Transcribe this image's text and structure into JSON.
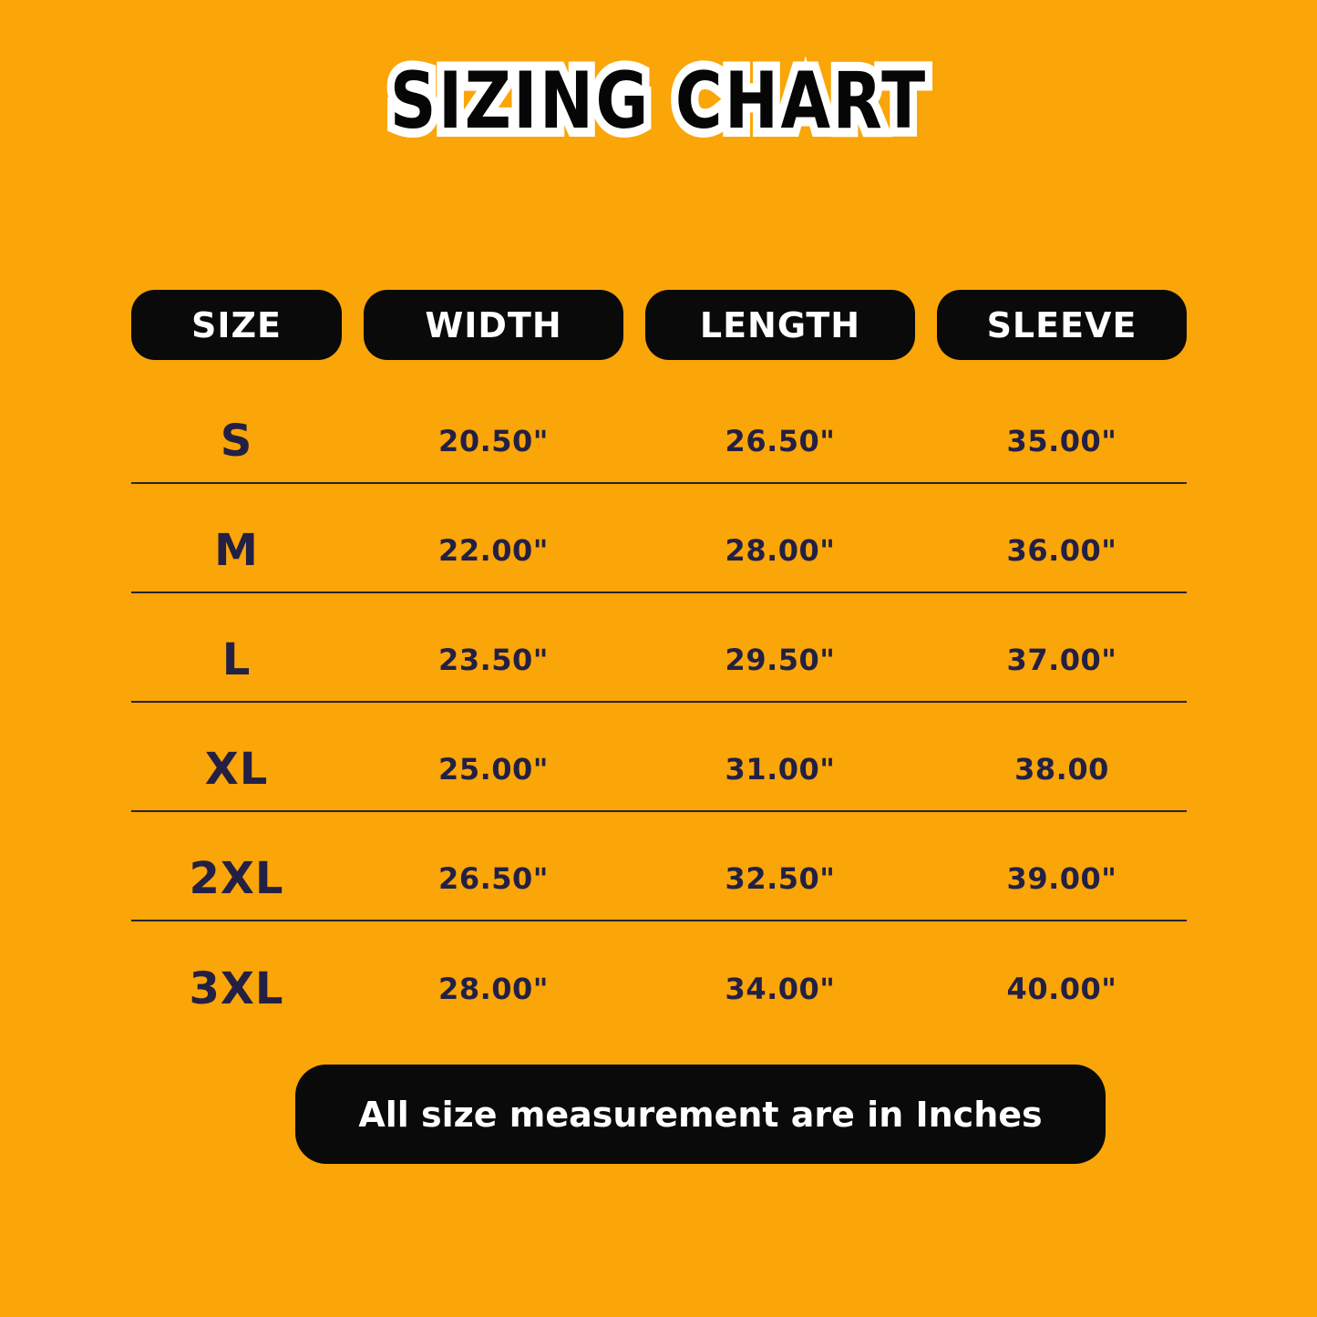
{
  "chart_data": {
    "type": "table",
    "title": "SIZING CHART",
    "columns": [
      "SIZE",
      "WIDTH",
      "LENGTH",
      "SLEEVE"
    ],
    "rows": [
      [
        "S",
        "20.50\"",
        "26.50\"",
        "35.00\""
      ],
      [
        "M",
        "22.00\"",
        "28.00\"",
        "36.00\""
      ],
      [
        "L",
        "23.50\"",
        "29.50\"",
        "37.00\""
      ],
      [
        "XL",
        "25.00\"",
        "31.00\"",
        "38.00"
      ],
      [
        "2XL",
        "26.50\"",
        "32.50\"",
        "39.00\""
      ],
      [
        "3XL",
        "28.00\"",
        "34.00\"",
        "40.00\""
      ]
    ],
    "note": "All size measurement are in Inches",
    "units": "inches",
    "layout_hints": {
      "grid": "horizontal separators between rows",
      "header_style": "black rounded pills"
    }
  },
  "colors": {
    "background": "#FAA508",
    "pill_bg": "#0A0A0A",
    "pill_text": "#FFFFFF",
    "row_text": "#232043",
    "separator": "#26242E",
    "footer_bg": "#0A0A0A",
    "footer_text": "#FFFFFF",
    "title_fill": "#060606",
    "title_outline": "#FFFFFF"
  }
}
